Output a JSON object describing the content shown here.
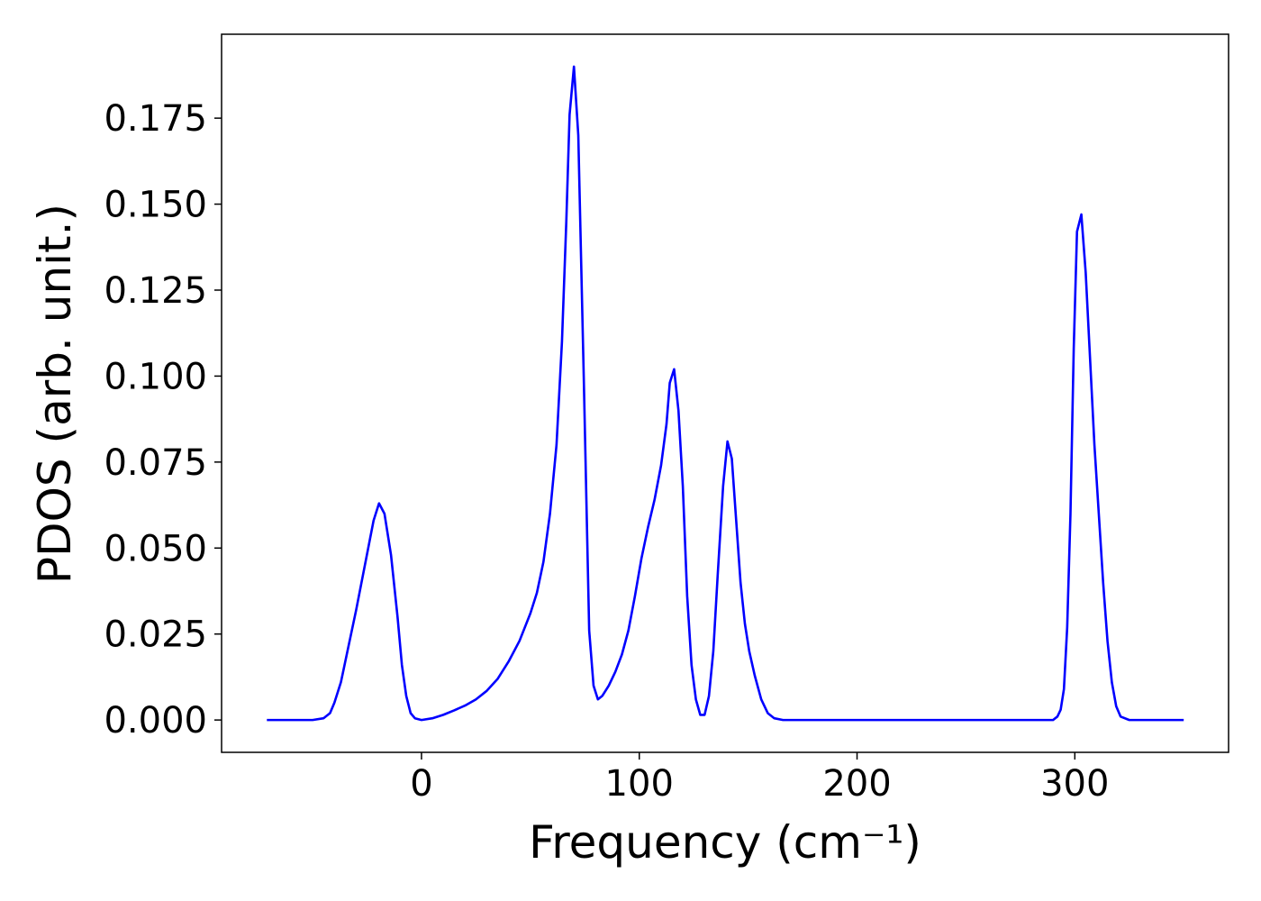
{
  "chart_data": {
    "type": "line",
    "xlabel": "Frequency (cm⁻¹)",
    "ylabel": "PDOS (arb. unit.)",
    "xlim": [
      -91.8,
      370.6
    ],
    "ylim": [
      -0.0094,
      0.1994
    ],
    "xticks": [
      0,
      100,
      200,
      300
    ],
    "yticks": [
      {
        "value": 0,
        "label": "0.000"
      },
      {
        "value": 0.025,
        "label": "0.025"
      },
      {
        "value": 0.05,
        "label": "0.050"
      },
      {
        "value": 0.075,
        "label": "0.075"
      },
      {
        "value": 0.1,
        "label": "0.100"
      },
      {
        "value": 0.125,
        "label": "0.125"
      },
      {
        "value": 0.15,
        "label": "0.150"
      },
      {
        "value": 0.175,
        "label": "0.175"
      }
    ],
    "grid": false,
    "x": [
      -71,
      -50,
      -45,
      -42,
      -40,
      -37,
      -34,
      -30,
      -26,
      -22,
      -19.5,
      -17,
      -14,
      -11,
      -9,
      -7,
      -5,
      -3,
      0,
      5,
      10,
      15,
      20,
      25,
      30,
      35,
      40,
      45,
      50,
      53,
      56,
      59,
      62,
      64.5,
      66.5,
      68,
      70,
      72,
      74.5,
      77,
      79,
      81,
      83,
      86,
      89,
      92,
      95,
      98,
      101,
      104,
      107,
      110,
      112.5,
      114,
      116,
      118,
      120,
      122,
      124,
      126,
      128,
      130,
      132,
      134,
      136,
      138.5,
      140.5,
      142.5,
      144.5,
      146.5,
      148.5,
      150.5,
      153,
      156,
      159,
      162,
      166,
      290,
      292,
      293.5,
      295,
      296.5,
      298,
      299.5,
      301,
      303,
      305,
      307,
      309,
      311,
      313,
      315,
      317,
      319,
      321,
      325,
      350
    ],
    "series": [
      {
        "name": "PDOS",
        "color": "#0000ff",
        "values": [
          0,
          0,
          0.0005,
          0.002,
          0.005,
          0.011,
          0.02,
          0.032,
          0.045,
          0.058,
          0.063,
          0.06,
          0.048,
          0.03,
          0.016,
          0.007,
          0.002,
          0.0005,
          0,
          0.0005,
          0.0015,
          0.0028,
          0.0042,
          0.006,
          0.0085,
          0.012,
          0.017,
          0.023,
          0.031,
          0.037,
          0.046,
          0.06,
          0.08,
          0.11,
          0.145,
          0.176,
          0.19,
          0.17,
          0.1,
          0.026,
          0.01,
          0.006,
          0.007,
          0.01,
          0.014,
          0.019,
          0.026,
          0.036,
          0.047,
          0.056,
          0.064,
          0.074,
          0.086,
          0.098,
          0.102,
          0.09,
          0.068,
          0.036,
          0.016,
          0.006,
          0.0015,
          0.0015,
          0.007,
          0.02,
          0.042,
          0.068,
          0.081,
          0.076,
          0.058,
          0.04,
          0.028,
          0.02,
          0.013,
          0.006,
          0.002,
          0.0005,
          0,
          0,
          0.001,
          0.003,
          0.009,
          0.027,
          0.06,
          0.108,
          0.142,
          0.147,
          0.13,
          0.105,
          0.08,
          0.06,
          0.04,
          0.023,
          0.011,
          0.004,
          0.001,
          0,
          0
        ]
      }
    ]
  }
}
